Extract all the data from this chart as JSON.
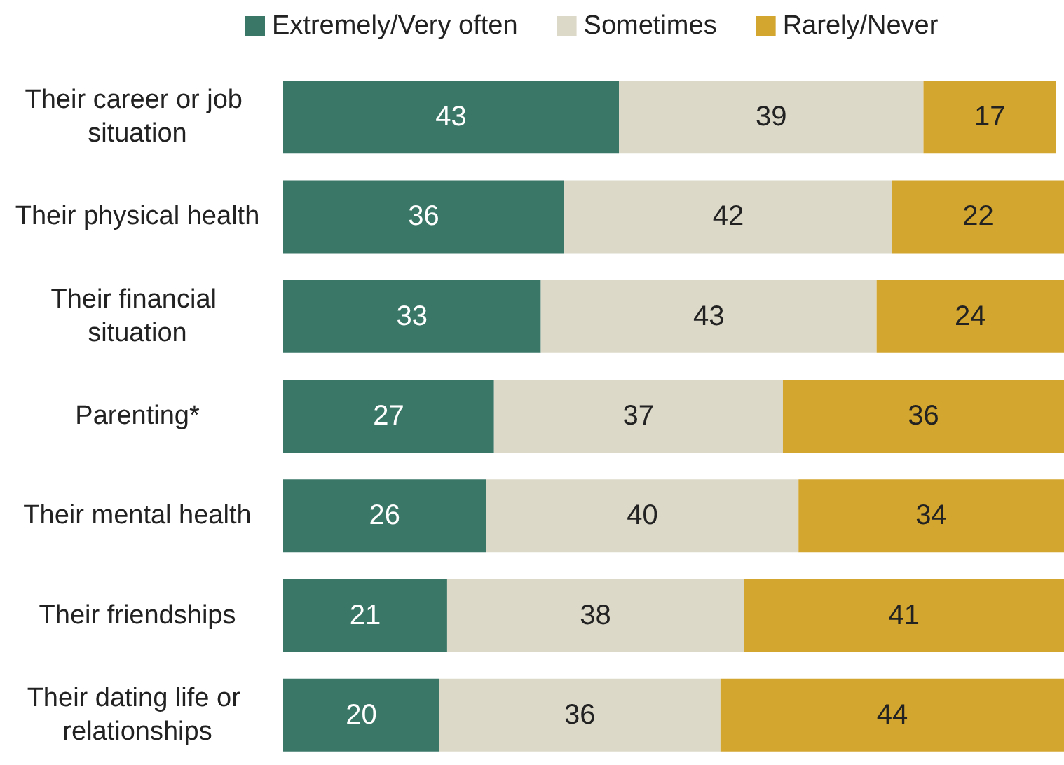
{
  "chart_data": {
    "type": "bar",
    "orientation": "horizontal",
    "stacked": true,
    "data_labels": true,
    "legend": "top",
    "xlim": [
      0,
      100
    ],
    "categories": [
      "Their career or job situation",
      "Their physical health",
      "Their financial situation",
      "Parenting*",
      "Their mental health",
      "Their friendships",
      "Their dating life or relationships"
    ],
    "series": [
      {
        "name": "Extremely/Very often",
        "color": "#3b7767",
        "values": [
          43,
          36,
          33,
          27,
          26,
          21,
          20
        ]
      },
      {
        "name": "Sometimes",
        "color": "#dcd9c9",
        "values": [
          39,
          42,
          43,
          37,
          40,
          38,
          36
        ]
      },
      {
        "name": "Rarely/Never",
        "color": "#d3a630",
        "values": [
          17,
          22,
          24,
          36,
          34,
          41,
          44
        ]
      }
    ]
  }
}
